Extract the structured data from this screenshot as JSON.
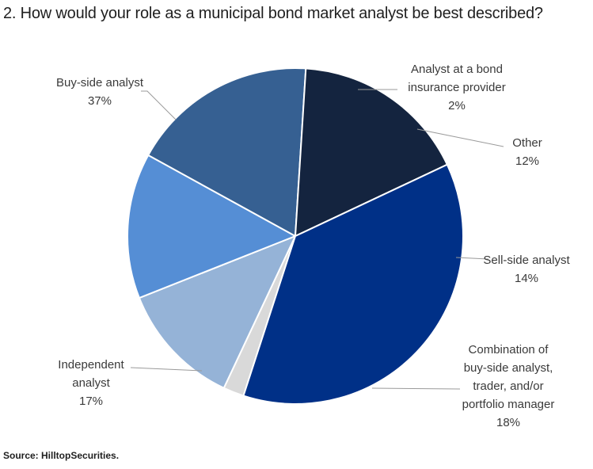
{
  "title": "2. How would your role as a municipal bond market analyst be best described?",
  "source": "Source: HilltopSecurities.",
  "chart_data": {
    "type": "pie",
    "start_angle_deg": -162,
    "direction": "clockwise",
    "slices": [
      {
        "label_lines": [
          "Analyst at a bond",
          "insurance provider"
        ],
        "value_text": "2%",
        "value": 2,
        "color": "#d9d9d9"
      },
      {
        "label_lines": [
          "Other"
        ],
        "value_text": "12%",
        "value": 12,
        "color": "#95b3d7"
      },
      {
        "label_lines": [
          "Sell-side analyst"
        ],
        "value_text": "14%",
        "value": 14,
        "color": "#558ed5"
      },
      {
        "label_lines": [
          "Combination of",
          "buy-side analyst,",
          "trader, and/or",
          "portfolio manager"
        ],
        "value_text": "18%",
        "value": 18,
        "color": "#366092"
      },
      {
        "label_lines": [
          "Independent",
          "analyst"
        ],
        "value_text": "17%",
        "value": 17,
        "color": "#14243f"
      },
      {
        "label_lines": [
          "Buy-side analyst"
        ],
        "value_text": "37%",
        "value": 37,
        "color": "#003087"
      }
    ]
  }
}
